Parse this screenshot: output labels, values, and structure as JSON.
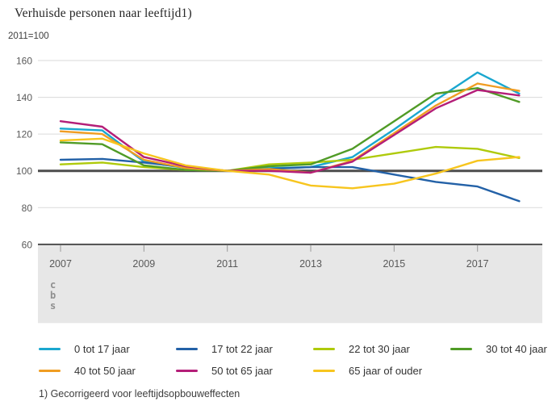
{
  "header": {
    "title": "Verhuisde personen naar leeftijd1)",
    "unit_label": "2011=100"
  },
  "footnote": "1) Gecorrigeerd voor leeftijdsopbouweffecten",
  "branding": {
    "logo_text": "cbs"
  },
  "style": {
    "grid_color": "#dadada",
    "axis_dark_color": "#4d4d4d",
    "tick_color": "#999999",
    "label_color": "#595959",
    "band_color": "#e7e7e7",
    "logo_color": "#8f8f8f"
  },
  "chart_data": {
    "type": "line",
    "title": "Verhuisde personen naar leeftijd1)",
    "subtitle": "2011=100",
    "x": [
      2007,
      2008,
      2009,
      2010,
      2011,
      2012,
      2013,
      2014,
      2015,
      2016,
      2017,
      2018
    ],
    "x_ticks": [
      2007,
      2009,
      2011,
      2013,
      2015,
      2017
    ],
    "y_ticks": [
      60,
      80,
      100,
      120,
      140,
      160
    ],
    "ylim": [
      60,
      160
    ],
    "reference_value": 100,
    "grid": true,
    "legend_position": "bottom",
    "series": [
      {
        "name": "0 tot 17 jaar",
        "color": "#1aa7cf",
        "values": [
          123,
          122,
          105,
          101.5,
          100,
          101.5,
          102,
          107.5,
          122.5,
          138.5,
          153.5,
          142
        ]
      },
      {
        "name": "17 tot 22 jaar",
        "color": "#2361a7",
        "values": [
          106,
          106.5,
          104.5,
          102,
          100,
          101,
          102,
          102,
          98,
          94,
          91.5,
          83.5
        ]
      },
      {
        "name": "22 tot 30 jaar",
        "color": "#afca0b",
        "values": [
          103.5,
          104.5,
          102,
          100.5,
          100,
          103.5,
          104.5,
          106,
          109.5,
          113,
          112,
          107
        ]
      },
      {
        "name": "30 tot 40 jaar",
        "color": "#509b26",
        "values": [
          115.5,
          114.5,
          103,
          100.5,
          100,
          102.5,
          103.5,
          112,
          127,
          142,
          145,
          137.5
        ]
      },
      {
        "name": "40 tot 50 jaar",
        "color": "#f09d22",
        "values": [
          121.5,
          120,
          106,
          101.5,
          100,
          101,
          99,
          105.5,
          120.5,
          135.5,
          147.5,
          143.5
        ]
      },
      {
        "name": "50 tot 65 jaar",
        "color": "#b41e78",
        "values": [
          127,
          124,
          107.5,
          102.5,
          100,
          100,
          99,
          105,
          119.5,
          134,
          144,
          141
        ]
      },
      {
        "name": "65 jaar of ouder",
        "color": "#f7c51e",
        "values": [
          116.5,
          117.5,
          109.5,
          103,
          100,
          98,
          92,
          90.5,
          93,
          98.5,
          105.5,
          107.5
        ]
      }
    ]
  }
}
